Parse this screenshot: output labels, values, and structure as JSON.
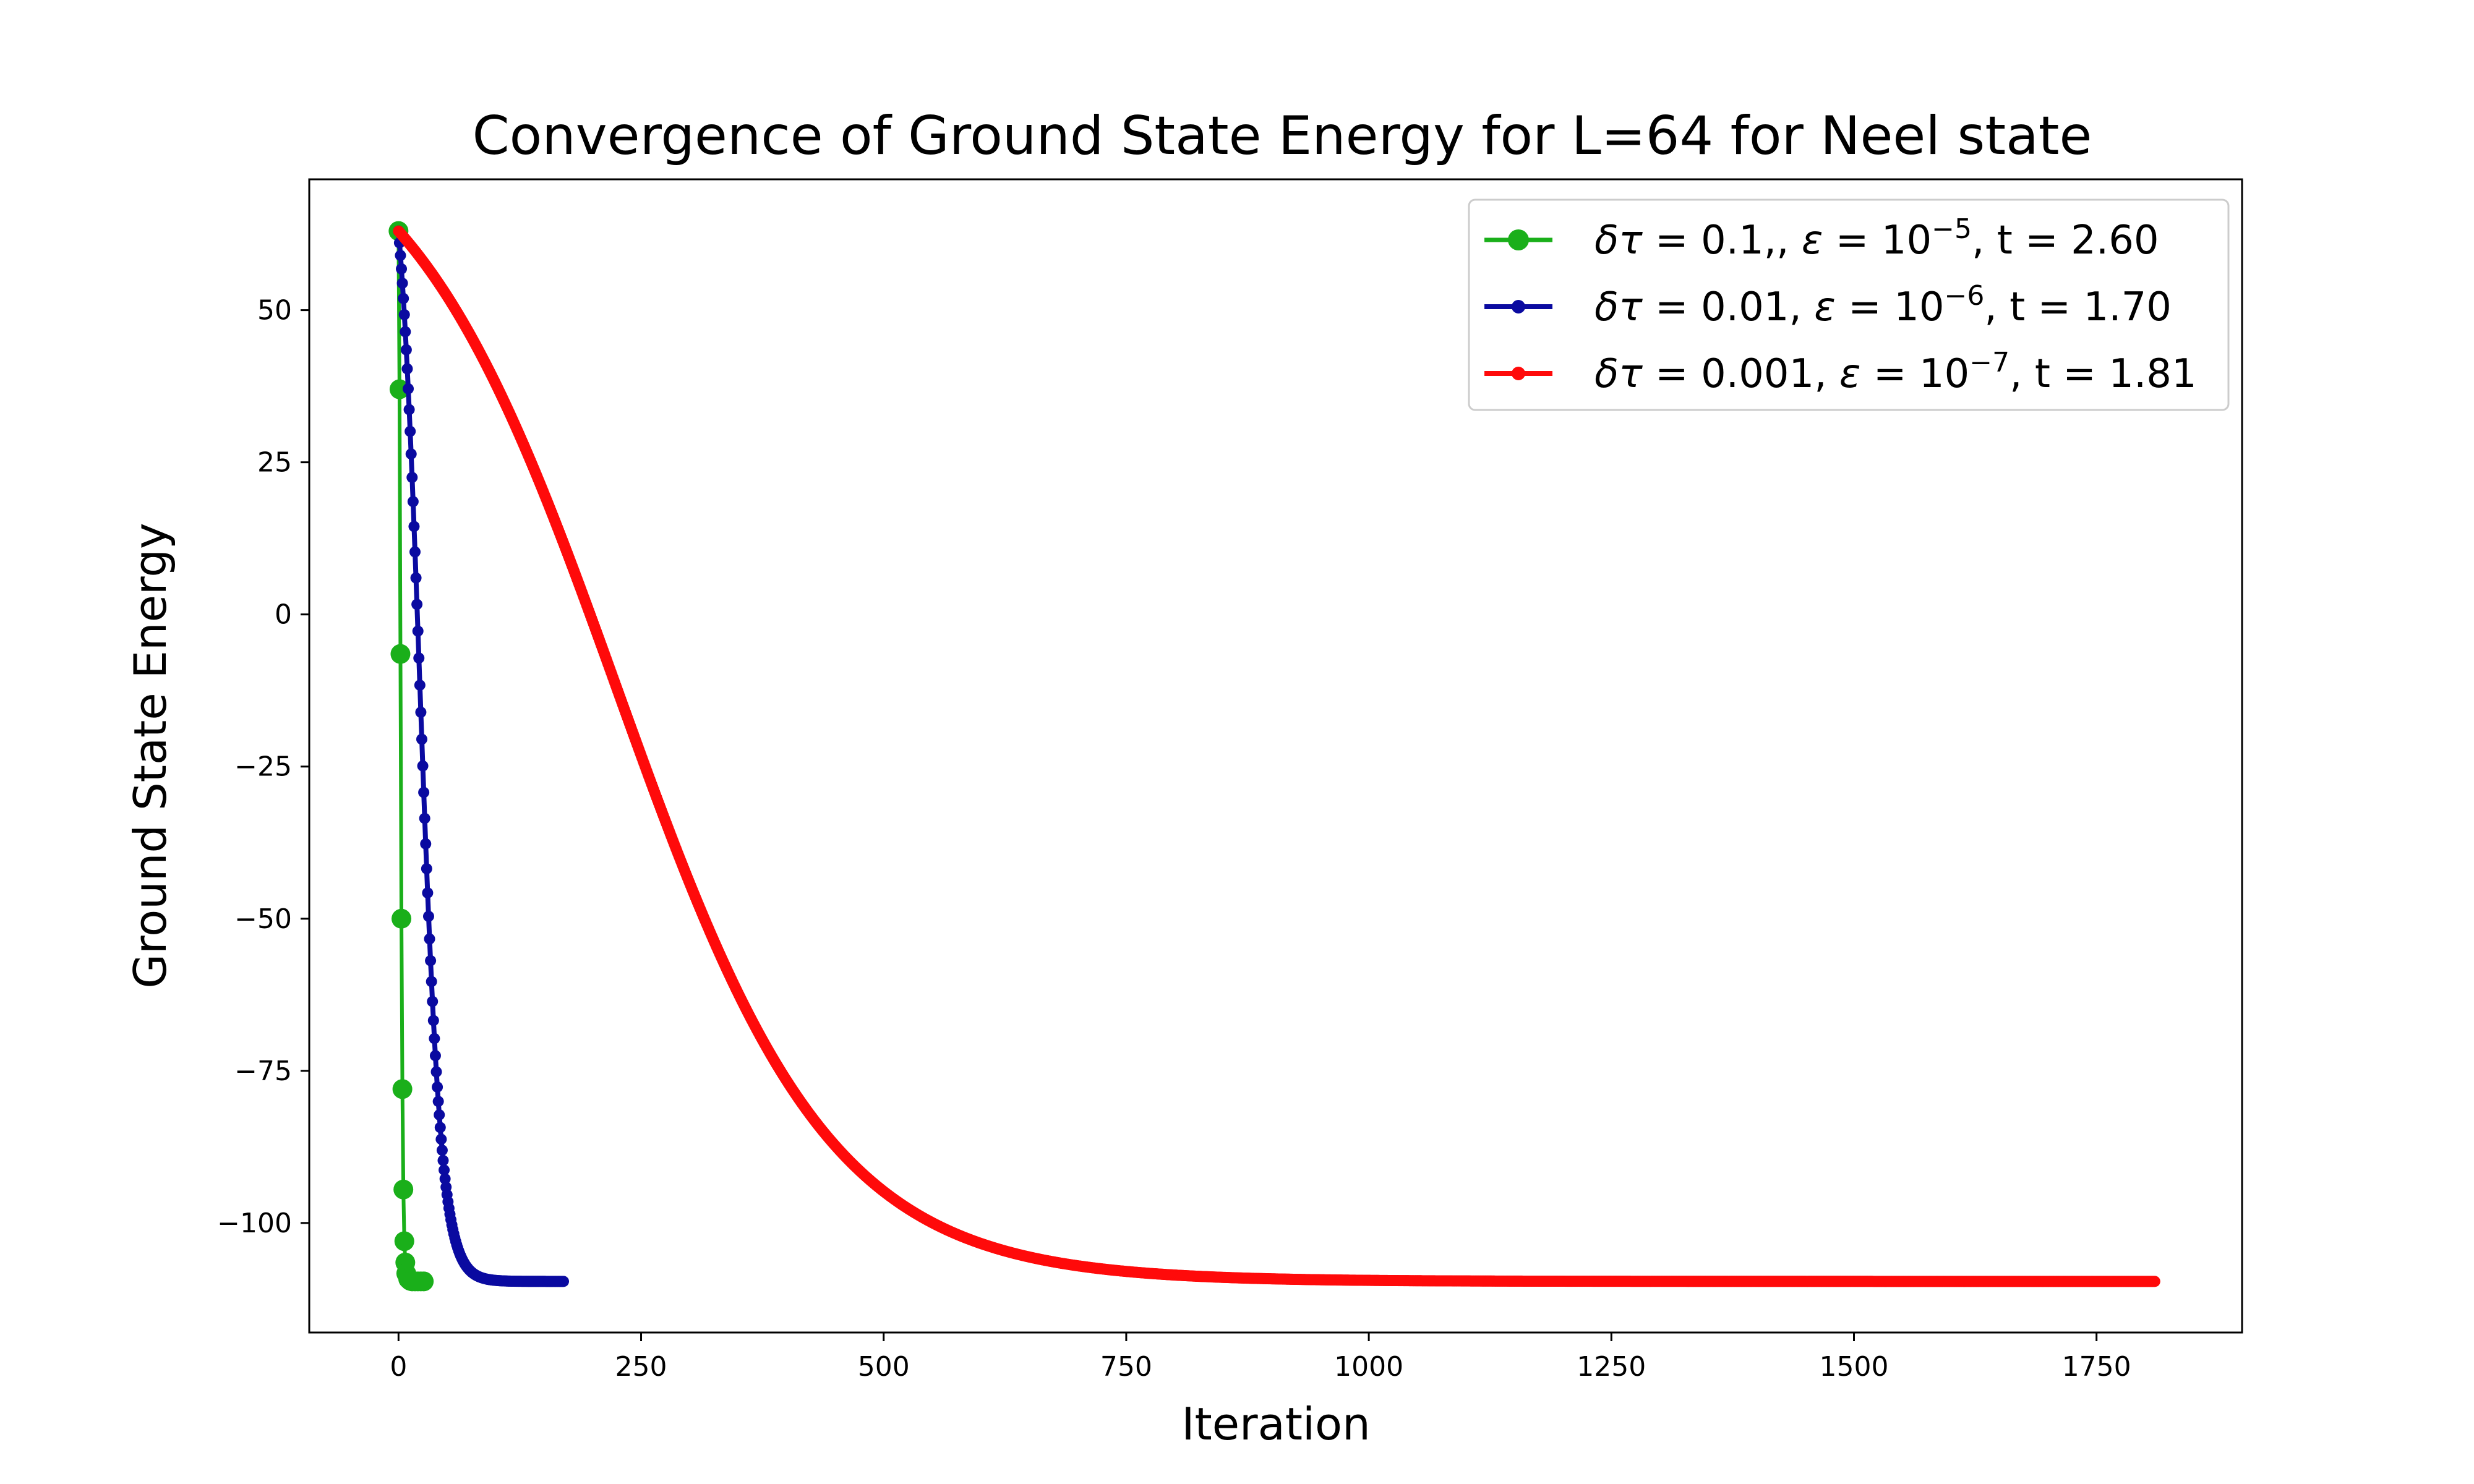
{
  "chart_data": {
    "type": "line",
    "title": "Convergence of Ground State Energy for L=64 for Neel state",
    "xlabel": "Iteration",
    "ylabel": "Ground State Energy",
    "xlim": [
      -92,
      1900
    ],
    "ylim": [
      -118,
      71.5
    ],
    "x_ticks": [
      0,
      250,
      500,
      750,
      1000,
      1250,
      1500,
      1750
    ],
    "x_tick_labels": [
      "0",
      "250",
      "500",
      "750",
      "1000",
      "1250",
      "1500",
      "1750"
    ],
    "y_ticks": [
      50,
      25,
      0,
      -25,
      -50,
      -75,
      -100
    ],
    "y_tick_labels": [
      "50",
      "25",
      "0",
      "−25",
      "−50",
      "−75",
      "−100"
    ],
    "grid": false,
    "legend_position": "top-right",
    "series": [
      {
        "name": "δτ = 0.1,, ε = 10⁻⁵, t = 2.60",
        "legend": {
          "dtau": "0.1,",
          "eps_exp": "−5",
          "time": "t = 2.60"
        },
        "color": "#1aaf1a",
        "marker": "large-circle",
        "points": [
          [
            0,
            63
          ],
          [
            1,
            37
          ],
          [
            2,
            -6.5
          ],
          [
            3,
            -50
          ],
          [
            4,
            -78
          ],
          [
            5,
            -94.5
          ],
          [
            6,
            -103
          ],
          [
            7,
            -106.5
          ],
          [
            8,
            -108.3
          ],
          [
            10,
            -109.2
          ],
          [
            12,
            -109.5
          ],
          [
            14,
            -109.6
          ],
          [
            17,
            -109.6
          ],
          [
            20,
            -109.6
          ],
          [
            23,
            -109.6
          ],
          [
            26,
            -109.6
          ]
        ]
      },
      {
        "name": "δτ = 0.01, ε = 10⁻⁶, t = 1.70",
        "legend": {
          "dtau": "0.01",
          "eps_exp": "−6",
          "time": "t = 1.70"
        },
        "color": "#0a0aa0",
        "marker": "small-dots",
        "model": {
          "E_start": 63,
          "E_end": -109.6,
          "center": 22,
          "width": 11,
          "n_points": 170
        }
      },
      {
        "name": "δτ = 0.001, ε = 10⁻⁷, t = 1.81",
        "legend": {
          "dtau": "0.001",
          "eps_exp": "−7",
          "time": "t = 1.81"
        },
        "color": "#ff0a0a",
        "marker": "small-dots",
        "model": {
          "E_start": 63,
          "E_end": -109.6,
          "center": 225,
          "width": 110,
          "n_points": 1810
        }
      }
    ]
  }
}
